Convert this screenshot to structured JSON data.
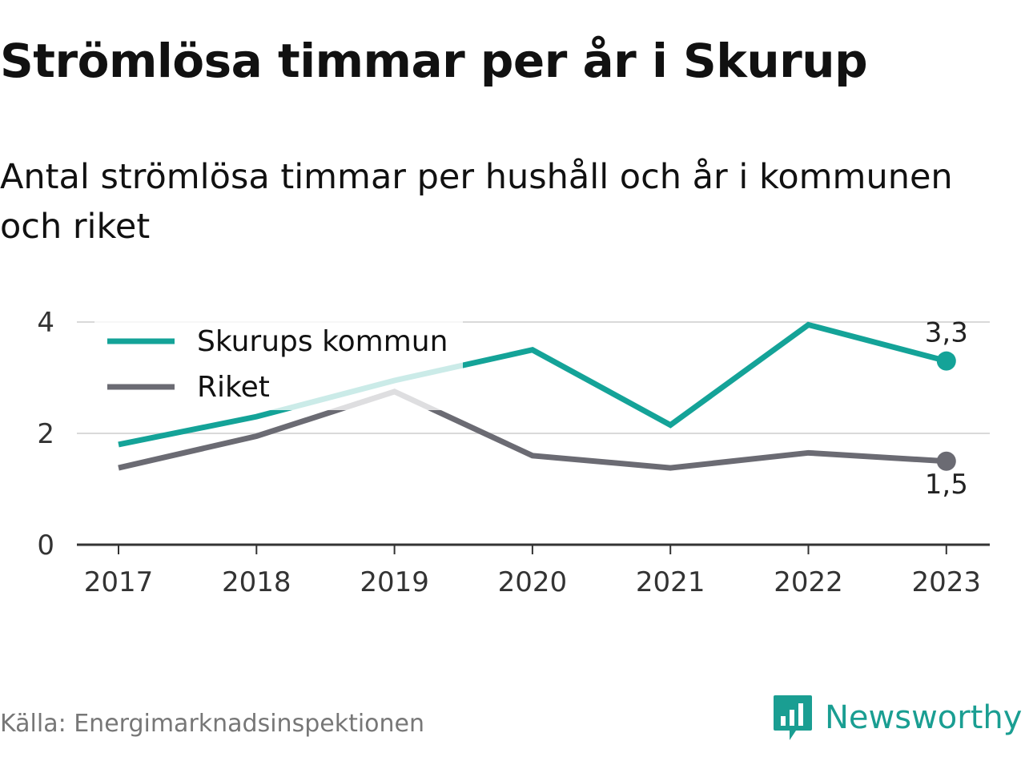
{
  "title": "Strömlösa timmar per år i Skurup",
  "subtitle": "Antal strömlösa timmar per hushåll och år i kommunen och riket",
  "source": "Källa: Energimarknadsinspektionen",
  "brand": {
    "name": "Newsworthy",
    "icon": "newsworthy-logo-icon"
  },
  "colors": {
    "skurup": "#14a398",
    "riket": "#6b6b73",
    "grid": "#d9d9d9",
    "axis": "#333333"
  },
  "chart_data": {
    "type": "line",
    "x": [
      "2017",
      "2018",
      "2019",
      "2020",
      "2021",
      "2022",
      "2023"
    ],
    "ylim": [
      0,
      4
    ],
    "yticks": [
      "0",
      "2",
      "4"
    ],
    "grid": true,
    "legend": "top-left",
    "series": [
      {
        "name": "Skurups kommun",
        "values": [
          1.8,
          2.3,
          2.95,
          3.5,
          2.15,
          3.95,
          3.3
        ],
        "end_label": "3,3"
      },
      {
        "name": "Riket",
        "values": [
          1.38,
          1.95,
          2.75,
          1.6,
          1.38,
          1.65,
          1.5
        ],
        "end_label": "1,5"
      }
    ]
  }
}
